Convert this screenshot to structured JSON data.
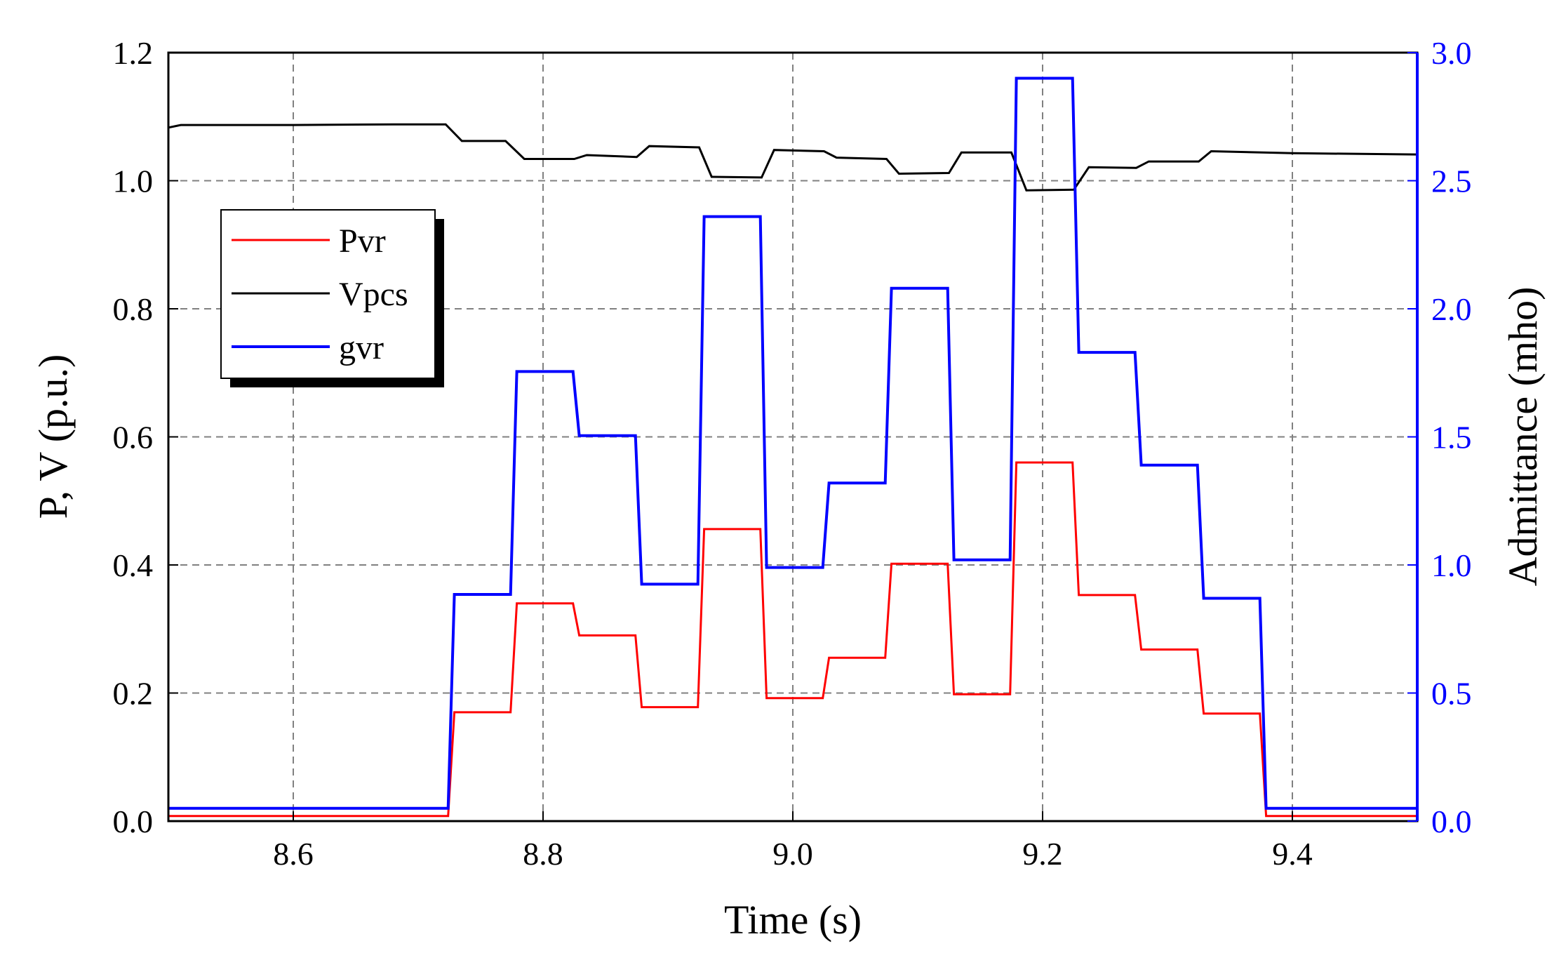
{
  "chart_data": {
    "type": "line",
    "xlabel": "Time (s)",
    "ylabel_left": "P, V (p.u.)",
    "ylabel_right": "Admittance (mho)",
    "xlim": [
      8.5,
      9.5
    ],
    "ylim_left": [
      0.0,
      1.2
    ],
    "ylim_right": [
      0.0,
      3.0
    ],
    "grid": true,
    "legend_position": "upper-left",
    "x_ticks": [
      "8.6",
      "8.8",
      "9.0",
      "9.2",
      "9.4"
    ],
    "y_ticks_left": [
      "0.0",
      "0.2",
      "0.4",
      "0.6",
      "0.8",
      "1.0",
      "1.2"
    ],
    "y_ticks_right": [
      "0.0",
      "0.5",
      "1.0",
      "1.5",
      "2.0",
      "2.5",
      "3.0"
    ],
    "series": [
      {
        "name": "Pvr",
        "axis": "left",
        "color": "#ff0000",
        "x": [
          8.5,
          8.724,
          8.729,
          8.774,
          8.779,
          8.824,
          8.829,
          8.874,
          8.879,
          8.924,
          8.929,
          8.974,
          8.979,
          9.024,
          9.029,
          9.074,
          9.079,
          9.124,
          9.129,
          9.174,
          9.179,
          9.224,
          9.229,
          9.274,
          9.279,
          9.324,
          9.329,
          9.374,
          9.379,
          9.5
        ],
        "values": [
          0.008,
          0.008,
          0.17,
          0.17,
          0.34,
          0.34,
          0.29,
          0.29,
          0.178,
          0.178,
          0.456,
          0.456,
          0.192,
          0.192,
          0.255,
          0.255,
          0.402,
          0.402,
          0.198,
          0.198,
          0.56,
          0.56,
          0.353,
          0.353,
          0.268,
          0.268,
          0.168,
          0.168,
          0.008,
          0.008
        ]
      },
      {
        "name": "Vpcs",
        "axis": "left",
        "color": "#000000",
        "x": [
          8.5,
          8.51,
          8.6,
          8.68,
          8.722,
          8.735,
          8.77,
          8.785,
          8.825,
          8.835,
          8.875,
          8.885,
          8.925,
          8.935,
          8.975,
          8.985,
          9.025,
          9.035,
          9.075,
          9.085,
          9.125,
          9.135,
          9.175,
          9.187,
          9.225,
          9.237,
          9.275,
          9.285,
          9.325,
          9.335,
          9.4,
          9.5
        ],
        "values": [
          1.083,
          1.087,
          1.087,
          1.088,
          1.088,
          1.062,
          1.062,
          1.034,
          1.034,
          1.04,
          1.037,
          1.054,
          1.052,
          1.006,
          1.005,
          1.048,
          1.046,
          1.036,
          1.034,
          1.011,
          1.012,
          1.044,
          1.044,
          0.985,
          0.986,
          1.021,
          1.02,
          1.03,
          1.03,
          1.046,
          1.043,
          1.041
        ]
      },
      {
        "name": "gvr",
        "axis": "right",
        "color": "#0000ff",
        "x": [
          8.5,
          8.724,
          8.729,
          8.774,
          8.779,
          8.824,
          8.829,
          8.874,
          8.879,
          8.924,
          8.929,
          8.974,
          8.979,
          9.024,
          9.029,
          9.074,
          9.079,
          9.124,
          9.129,
          9.174,
          9.179,
          9.224,
          9.229,
          9.274,
          9.279,
          9.324,
          9.329,
          9.374,
          9.379,
          9.5
        ],
        "values": [
          0.05,
          0.05,
          0.885,
          0.885,
          1.755,
          1.755,
          1.505,
          1.505,
          0.925,
          0.925,
          2.36,
          2.36,
          0.99,
          0.99,
          1.32,
          1.32,
          2.08,
          2.08,
          1.02,
          1.02,
          2.9,
          2.9,
          1.83,
          1.83,
          1.39,
          1.39,
          0.87,
          0.87,
          0.05,
          0.05
        ]
      }
    ]
  }
}
